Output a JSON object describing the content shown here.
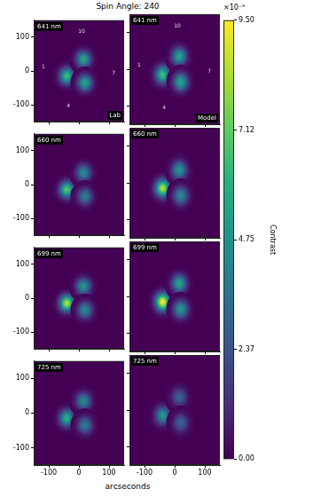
{
  "chart_data": {
    "type": "heatmap",
    "title": "Spin Angle: 240",
    "xlabel": "arcseconds",
    "xlim": [
      -150,
      150
    ],
    "ylim": [
      -150,
      150
    ],
    "xticks": [
      -100,
      0,
      100
    ],
    "yticks": [
      -100,
      0,
      100
    ],
    "grid": false,
    "column_labels": [
      "Lab",
      "Model"
    ],
    "panels": [
      {
        "wavelength": "641 nm",
        "lab": [
          {
            "x": -40,
            "y": -15,
            "value": 6.5e-09,
            "width": 16
          },
          {
            "x": 15,
            "y": 35,
            "value": 5.5e-09,
            "width": 16
          },
          {
            "x": 20,
            "y": -35,
            "value": 5.5e-09,
            "width": 16
          }
        ],
        "model": [
          {
            "x": -40,
            "y": -15,
            "value": 6.5e-09,
            "width": 16
          },
          {
            "x": 15,
            "y": 35,
            "value": 5.5e-09,
            "width": 16
          },
          {
            "x": 20,
            "y": -35,
            "value": 5.5e-09,
            "width": 16
          }
        ],
        "annotations": [
          {
            "text": "10",
            "x": 9,
            "y": 118
          },
          {
            "text": "1",
            "x": -118,
            "y": 12
          },
          {
            "text": "4",
            "x": -35,
            "y": -104
          },
          {
            "text": "7",
            "x": 115,
            "y": -7
          }
        ]
      },
      {
        "wavelength": "660 nm",
        "lab": [
          {
            "x": -40,
            "y": -15,
            "value": 7e-09,
            "width": 16
          },
          {
            "x": 15,
            "y": 35,
            "value": 4.5e-09,
            "width": 16
          },
          {
            "x": 20,
            "y": -35,
            "value": 4e-09,
            "width": 16
          }
        ],
        "model": [
          {
            "x": -40,
            "y": -15,
            "value": 8.5e-09,
            "width": 16
          },
          {
            "x": 15,
            "y": 35,
            "value": 5e-09,
            "width": 16
          },
          {
            "x": 20,
            "y": -35,
            "value": 4.5e-09,
            "width": 16
          }
        ]
      },
      {
        "wavelength": "699 nm",
        "lab": [
          {
            "x": -40,
            "y": -15,
            "value": 8.5e-09,
            "width": 16
          },
          {
            "x": 15,
            "y": 35,
            "value": 5e-09,
            "width": 16
          },
          {
            "x": 20,
            "y": -35,
            "value": 4.5e-09,
            "width": 16
          }
        ],
        "model": [
          {
            "x": -40,
            "y": -15,
            "value": 9.5e-09,
            "width": 16
          },
          {
            "x": 15,
            "y": 35,
            "value": 5.5e-09,
            "width": 16
          },
          {
            "x": 20,
            "y": -35,
            "value": 5e-09,
            "width": 16
          }
        ]
      },
      {
        "wavelength": "725 nm",
        "lab": [
          {
            "x": -40,
            "y": -15,
            "value": 6e-09,
            "width": 16
          },
          {
            "x": 15,
            "y": 35,
            "value": 4.5e-09,
            "width": 16
          },
          {
            "x": 20,
            "y": -35,
            "value": 4e-09,
            "width": 16
          }
        ],
        "model": [
          {
            "x": -40,
            "y": -15,
            "value": 5e-09,
            "width": 16
          },
          {
            "x": 15,
            "y": 35,
            "value": 3e-09,
            "width": 16
          },
          {
            "x": 20,
            "y": -35,
            "value": 3e-09,
            "width": 16
          }
        ]
      }
    ],
    "colorbar": {
      "label": "Contrast",
      "multiplier": "×10⁻⁹",
      "range": [
        0,
        9.5e-09
      ],
      "ticks": [
        {
          "value": 0,
          "label": "0.00"
        },
        {
          "value": 2.37e-09,
          "label": "2.37"
        },
        {
          "value": 4.75e-09,
          "label": "4.75"
        },
        {
          "value": 7.12e-09,
          "label": "7.12"
        },
        {
          "value": 9.5e-09,
          "label": "9.50"
        }
      ]
    }
  }
}
